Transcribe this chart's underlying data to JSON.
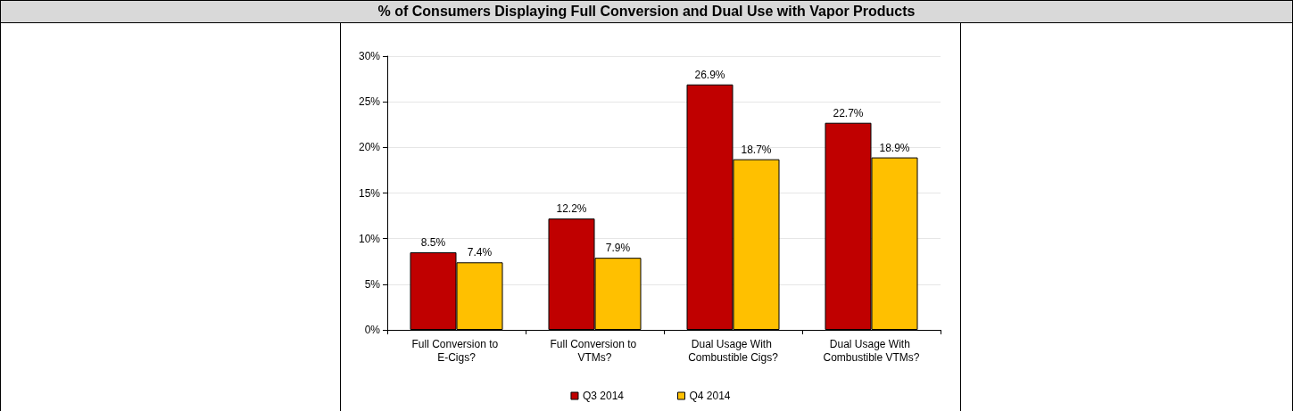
{
  "chart_data": {
    "type": "bar",
    "title": "% of Consumers Displaying Full  Conversion and Dual Use with Vapor Products",
    "categories": [
      "Full Conversion to E-Cigs?",
      "Full Conversion to VTMs?",
      "Dual Usage With Combustible Cigs?",
      "Dual Usage With Combustible VTMs?"
    ],
    "series": [
      {
        "name": "Q3 2014",
        "color": "#c00000",
        "values": [
          8.5,
          12.2,
          26.9,
          22.7
        ],
        "value_labels": [
          "8.5%",
          "12.2%",
          "26.9%",
          "22.7%"
        ]
      },
      {
        "name": "Q4 2014",
        "color": "#ffc000",
        "values": [
          7.4,
          7.9,
          18.7,
          18.9
        ],
        "value_labels": [
          "7.4%",
          "7.9%",
          "18.7%",
          "18.9%"
        ]
      }
    ],
    "ylim": [
      0,
      30
    ],
    "yticks": [
      {
        "value": 0,
        "label": "0%"
      },
      {
        "value": 5,
        "label": "5%"
      },
      {
        "value": 10,
        "label": "10%"
      },
      {
        "value": 15,
        "label": "15%"
      },
      {
        "value": 20,
        "label": "20%"
      },
      {
        "value": 25,
        "label": "25%"
      },
      {
        "value": 30,
        "label": "30%"
      }
    ],
    "grid": "y",
    "legend": "bottom"
  }
}
